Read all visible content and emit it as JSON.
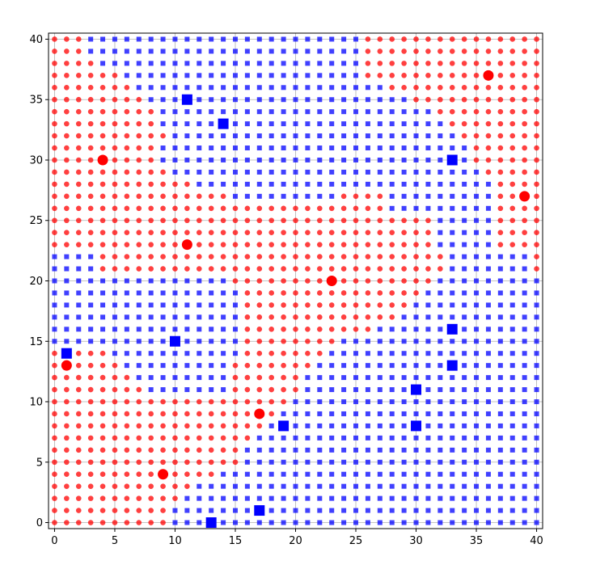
{
  "chart_data": {
    "type": "scatter",
    "title": "",
    "xlabel": "",
    "ylabel": "",
    "xlim": [
      -0.5,
      40.5
    ],
    "ylim": [
      -0.5,
      40.5
    ],
    "grid": true,
    "grid_step": 5,
    "x_ticks": [
      0,
      5,
      10,
      15,
      20,
      25,
      30,
      35,
      40
    ],
    "y_ticks": [
      0,
      5,
      10,
      15,
      20,
      25,
      30,
      35,
      40
    ],
    "x_tick_labels": [
      "0",
      "5",
      "10",
      "15",
      "20",
      "25",
      "30",
      "35",
      "40"
    ],
    "y_tick_labels": [
      "0",
      "5",
      "10",
      "15",
      "20",
      "25",
      "30",
      "35",
      "40"
    ],
    "grid_cell_classes": {
      "row_order": "y = 40 at top down to y = 0 at bottom; character index = x (0..40)",
      "legend": {
        "R": "red circle",
        "B": "blue square"
      },
      "rows": [
        "RRRBBBBBBBBBBBBBBBBBBBBBBBRRRRRRRRRRRRRRR",
        "RRRBBBBBBBBBBBBBBBBBBBBBBBRRRRRRRRRRRRRRR",
        "RRRRBBBBBBBBBBBBBBBBBBBBBBRRRRRRRRRRRRRRR",
        "RRRRRRBBBBBBBBBBBBBBBBBBBBRRRRRRRRRRRRRRR",
        "RRRRRRRBBBBBBBBBBBBBBBBBBBBBRRRRRRRRRRRRR",
        "RRRRRRRRBBBBBBBBBBBBBBBBBBBBBBRRRRRRRRRRR",
        "RRRRRRRRRBBBBBBBBBBBBBBBBBBBBBBBRRRRRRRRR",
        "RRRRRRRRRBBBBBBBBBBBBBBBBBBBBBBBBRRRRRRRR",
        "RRRRRRRRRRBBBBBBBBBBBBBBBBBBBBBBBBRRRRRRR",
        "RRRRRRRRRBBBBBBBBBBBBBBBBBBBBBBBBBBRRRRRR",
        "RRRRRRRRRBBBBBBBBBBBBBBBBBBBBBBBBBBRRRRRR",
        "RRRRRRRRRRBBBBBBBBBBBBBBBBBBBBBBBBBBRRRRR",
        "RRRRRRRRRRRRBBBBBBBBBBBBBBBBBBBBBBBBBRRRR",
        "RRRRRRRRRRRRRRRBBBBBBBBBRRRRBBBBBBBBBRRRR",
        "RRRRRRRRRRRRRRRRRRRRRRRRRRRRBBBBBBBBBRRRR",
        "RRRRRRRRRRRRRRRRRRRRRRRRRRRRRRRRBBBBBRRRR",
        "RRRRRRRRRRRRRRRRRRRRRRRRRRRRRRRRBBBBBRRRR",
        "RRRRRRRRRRRRRRRRRRRRRRRRRRRRRRRRBBBBBRRRR",
        "BBBBRRRRRRRRRRRRRRRRRRRRRRRRRRRRRBBBBBBBR",
        "BBBBRRRRRRRRRRRRRRRRRRRRRRRRRRRRRBBBBBBBR",
        "BBBBBBBBBBBBBBBRRRRRRRRRRRRRRRRRBBBBBBBBB",
        "BBBBBBBBBBBBBBBBRRRRRRRRRRRRRRRBBBBBBBBBB",
        "BBBBBBBBBBBBBBBBRRRRRRRRRRRRRRBBBBBBBBBBB",
        "BBBBBBBBBBBBBBBBRRRRRRRRRRRRRBBBBBBBBBBBB",
        "BBBBBBBBBBBBBBBBRRRRRRRRRRRBBBBBBBBBBBBBB",
        "BBBBBBBBBBBBBBBBRRRRRRRRBBBBBBBBBBBBBBBBB",
        "RRRRRBBBBBBBBBBBRRRRRRRBBBBBBBBBBBBBBBBBB",
        "RRRRRRBBBBBBBBBRRRRRRRBBBBBBBBBBBBBBBBBBB",
        "RRRRRRRBBBBBBBBRRRRRRBBBBBBBBBBBBBBBBBBBB",
        "RRRRRRRRBBBBBBBRRRRRRBBBBBBBBBBBBBBBBBBBB",
        "RRRRRRRRRRRRRRRRRRRRBBBBBBBBBBBBBBBBBBBBB",
        "RRRRRRRRRRRRRRRRRRRBBBBBBBBBBBBBBBBBBBBBB",
        "RRRRRRRRRRRRRRRRRRBBBBBBBBBBBBBBBBBBBBBBB",
        "RRRRRRRRRRRRRRRRRBBBBBBBBBBBBBBBBBBBBBBBB",
        "RRRRRRRRRRRRRRRRBBBBBBBBBBBBBBBBBBBBBBBBB",
        "RRRRRRRRRRRRRRRRBBBBBBBBBBBBBBBBBBBBBBBBB",
        "RRRRRRRRRRRRRRBBBBBBBBBBBBBBBBBBBBBBBBBBB",
        "RRRRRRRRRRRRBBBBBBBBBBBBBBBBBBBBBBBBBBBBB",
        "RRRRRRRRRRRBBBBBBBBBBBBBBBBBBBBBBBBBBBBBB",
        "RRRRRRRRRRBBBBBBBBBBBBBBBBBBBBBBBBBBBBBBB",
        "RRRRRRRRRRBBBBBBBBBBBBBBBBBBBBBBBBBBBBBBB"
      ]
    },
    "series": [
      {
        "marker": "circle",
        "color": "#ff0000",
        "role": "highlighted",
        "points": [
          [
            36,
            37
          ],
          [
            4,
            30
          ],
          [
            39,
            27
          ],
          [
            11,
            23
          ],
          [
            23,
            20
          ],
          [
            1,
            13
          ],
          [
            17,
            9
          ],
          [
            9,
            4
          ]
        ]
      },
      {
        "marker": "square",
        "color": "#0000ff",
        "role": "highlighted",
        "points": [
          [
            11,
            35
          ],
          [
            14,
            33
          ],
          [
            33,
            30
          ],
          [
            33,
            16
          ],
          [
            1,
            14
          ],
          [
            10,
            15
          ],
          [
            33,
            13
          ],
          [
            30,
            11
          ],
          [
            19,
            8
          ],
          [
            30,
            8
          ],
          [
            17,
            1
          ],
          [
            13,
            0
          ]
        ]
      }
    ],
    "colors": {
      "red": "#ff0000",
      "blue": "#0000ff",
      "grid": "#b0b0b0",
      "axes": "#000000"
    }
  }
}
